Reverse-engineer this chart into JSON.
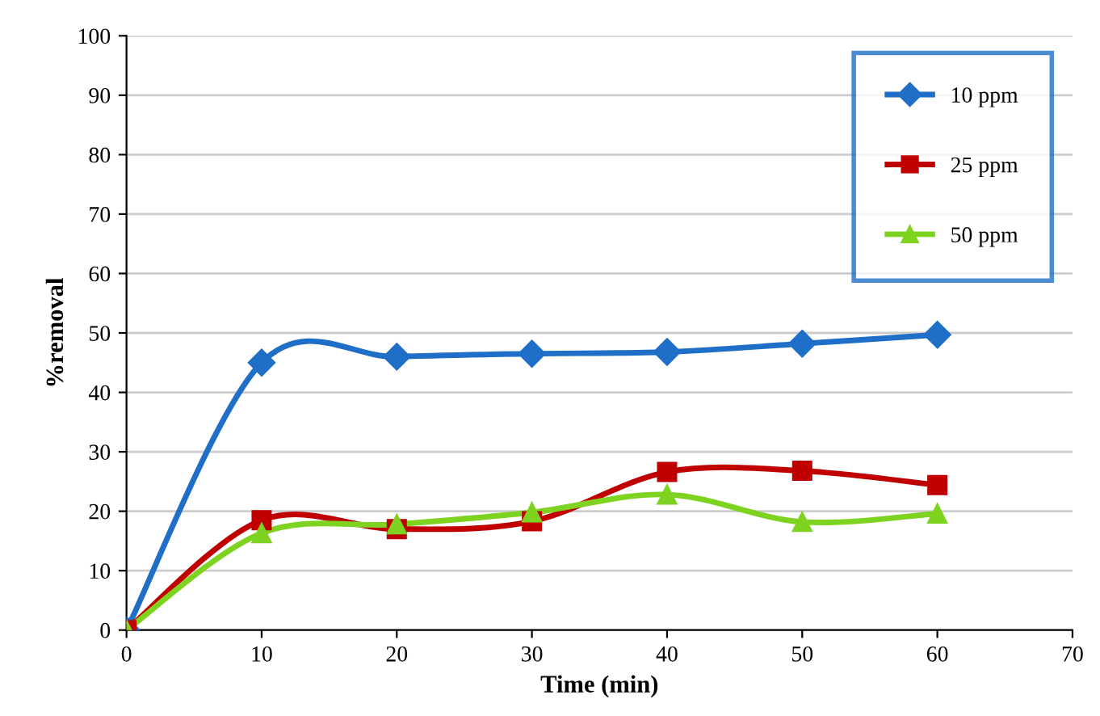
{
  "chart_data": {
    "type": "line",
    "xlabel": "Time (min)",
    "ylabel": "%removal",
    "x": [
      0,
      10,
      20,
      30,
      40,
      50,
      60
    ],
    "xlim": [
      0,
      70
    ],
    "xticks": [
      0,
      10,
      20,
      30,
      40,
      50,
      60,
      70
    ],
    "ylim": [
      0,
      100
    ],
    "yticks": [
      0,
      10,
      20,
      30,
      40,
      50,
      60,
      70,
      80,
      90,
      100
    ],
    "grid": "y",
    "legend": "top right",
    "series": [
      {
        "name": "10 ppm",
        "color": "#1f6fc8",
        "marker": "diamond",
        "values": [
          0,
          45,
          46,
          46.5,
          46.8,
          48.2,
          49.7
        ]
      },
      {
        "name": "25 ppm",
        "color": "#c00000",
        "marker": "square",
        "values": [
          0,
          18.5,
          17,
          18.3,
          26.6,
          26.8,
          24.4
        ]
      },
      {
        "name": "50 ppm",
        "color": "#7ed321",
        "marker": "triangle",
        "values": [
          0,
          16.3,
          17.8,
          19.8,
          22.8,
          18.2,
          19.6
        ]
      }
    ]
  }
}
